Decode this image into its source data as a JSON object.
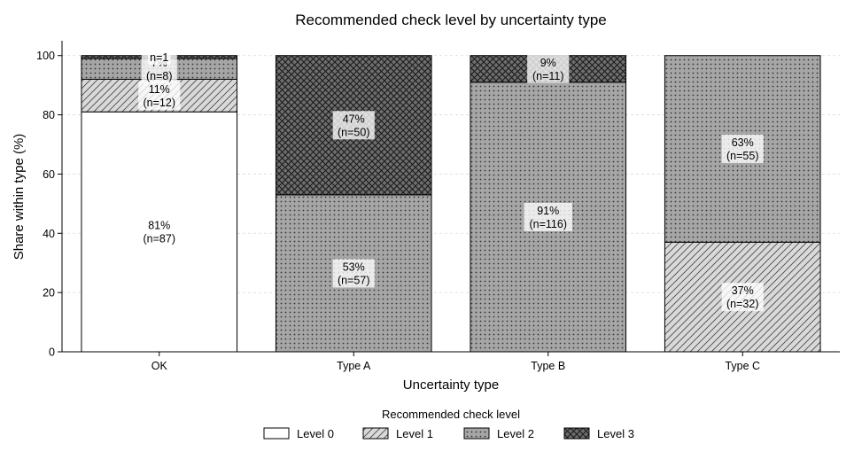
{
  "chart_data": {
    "type": "bar",
    "stacked": true,
    "title": "Recommended check level by uncertainty type",
    "xlabel": "Uncertainty type",
    "ylabel": "Share within type (%)",
    "ylim": [
      0,
      105
    ],
    "yticks": [
      0,
      20,
      40,
      60,
      80,
      100
    ],
    "grid": true,
    "legend_position": "bottom-center",
    "legend_title": "Recommended check level",
    "categories": [
      "OK",
      "Type A",
      "Type B",
      "Type C"
    ],
    "series": [
      {
        "name": "Level 0",
        "pattern": "none",
        "color": "#ffffff",
        "values": [
          81,
          0,
          0,
          0
        ],
        "labels": [
          "81%",
          "",
          "",
          ""
        ],
        "n_labels": [
          "(n=87)",
          "",
          "",
          ""
        ]
      },
      {
        "name": "Level 1",
        "pattern": "diagonal",
        "color": "#d9d9d9",
        "values": [
          11,
          0,
          0,
          37
        ],
        "labels": [
          "11%",
          "",
          "",
          "37%"
        ],
        "n_labels": [
          "(n=12)",
          "",
          "",
          "(n=32)"
        ]
      },
      {
        "name": "Level 2",
        "pattern": "dots",
        "color": "#a6a6a6",
        "values": [
          7,
          53,
          91,
          63
        ],
        "labels": [
          "7%",
          "53%",
          "91%",
          "63%"
        ],
        "n_labels": [
          "(n=8)",
          "(n=57)",
          "(n=116)",
          "(n=55)"
        ]
      },
      {
        "name": "Level 3",
        "pattern": "crosshatch",
        "color": "#6e6e6e",
        "values": [
          1,
          47,
          9,
          0
        ],
        "labels": [
          "n=1",
          "47%",
          "9%",
          ""
        ],
        "n_labels": [
          "",
          "(n=50)",
          "(n=11)",
          ""
        ]
      }
    ]
  }
}
